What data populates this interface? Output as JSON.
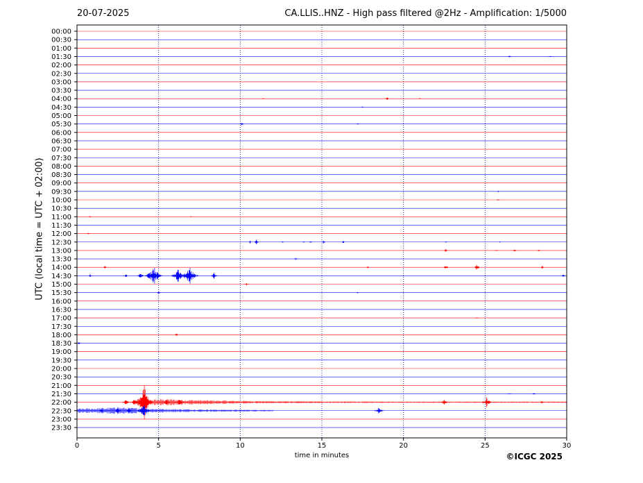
{
  "header": {
    "date": "20-07-2025",
    "title": "CA.LLIS..HNZ - High pass filtered @2Hz - Amplification: 1/5000"
  },
  "axes": {
    "xlabel": "time in minutes",
    "ylabel": "UTC (local time = UTC + 02:00)"
  },
  "credit": "©ICGC 2025",
  "colors": {
    "trace_red": "#ff0000",
    "trace_blue": "#0000ff",
    "grid": "#000080"
  },
  "chart_data": {
    "type": "line",
    "title": "CA.LLIS..HNZ - High pass filtered @2Hz - Amplification: 1/5000",
    "xlabel": "time in minutes",
    "ylabel": "UTC (local time = UTC + 02:00)",
    "xlim": [
      0,
      30
    ],
    "x_ticks": [
      0,
      5,
      10,
      15,
      20,
      25,
      30
    ],
    "grid": "vertical dotted at 5-minute ticks",
    "rows": [
      "00:00",
      "00:30",
      "01:00",
      "01:30",
      "02:00",
      "02:30",
      "03:00",
      "03:30",
      "04:00",
      "04:30",
      "05:00",
      "05:30",
      "06:00",
      "06:30",
      "07:00",
      "07:30",
      "08:00",
      "08:30",
      "09:00",
      "09:30",
      "10:00",
      "10:30",
      "11:00",
      "11:30",
      "12:00",
      "12:30",
      "13:00",
      "13:30",
      "14:00",
      "14:30",
      "15:00",
      "15:30",
      "16:00",
      "16:30",
      "17:00",
      "17:30",
      "18:00",
      "18:30",
      "19:00",
      "19:30",
      "20:00",
      "20:30",
      "21:00",
      "21:30",
      "22:00",
      "22:30",
      "23:00",
      "23:30"
    ],
    "row_colors": "alternating red (even rows) / blue (odd rows)",
    "events": [
      {
        "row": "01:30",
        "t": 26.5,
        "amp": 1
      },
      {
        "row": "01:30",
        "t": 29.0,
        "amp": 1
      },
      {
        "row": "04:00",
        "t": 19.0,
        "amp": 2
      },
      {
        "row": "04:00",
        "t": 11.4,
        "amp": 0.7
      },
      {
        "row": "04:00",
        "t": 21.0,
        "amp": 0.7
      },
      {
        "row": "04:30",
        "t": 17.5,
        "amp": 1
      },
      {
        "row": "05:30",
        "t": 10.1,
        "amp": 2
      },
      {
        "row": "05:30",
        "t": 17.2,
        "amp": 1
      },
      {
        "row": "09:30",
        "t": 25.8,
        "amp": 1
      },
      {
        "row": "10:00",
        "t": 25.8,
        "amp": 1
      },
      {
        "row": "11:00",
        "t": 0.8,
        "amp": 1
      },
      {
        "row": "11:00",
        "t": 7.0,
        "amp": 1
      },
      {
        "row": "12:00",
        "t": 0.7,
        "amp": 1
      },
      {
        "row": "12:30",
        "t": 10.6,
        "amp": 2
      },
      {
        "row": "12:30",
        "t": 11.0,
        "amp": 3
      },
      {
        "row": "12:30",
        "t": 12.6,
        "amp": 1
      },
      {
        "row": "12:30",
        "t": 13.9,
        "amp": 1
      },
      {
        "row": "12:30",
        "t": 14.3,
        "amp": 2
      },
      {
        "row": "12:30",
        "t": 15.1,
        "amp": 2
      },
      {
        "row": "12:30",
        "t": 16.3,
        "amp": 2
      },
      {
        "row": "12:30",
        "t": 22.6,
        "amp": 1
      },
      {
        "row": "12:30",
        "t": 25.9,
        "amp": 1
      },
      {
        "row": "13:00",
        "t": 22.6,
        "amp": 2
      },
      {
        "row": "13:00",
        "t": 25.7,
        "amp": 1
      },
      {
        "row": "13:00",
        "t": 26.8,
        "amp": 2
      },
      {
        "row": "13:00",
        "t": 28.3,
        "amp": 1
      },
      {
        "row": "13:30",
        "t": 13.4,
        "amp": 2
      },
      {
        "row": "14:00",
        "t": 1.7,
        "amp": 2
      },
      {
        "row": "14:00",
        "t": 17.8,
        "amp": 2
      },
      {
        "row": "14:00",
        "t": 22.6,
        "amp": 3
      },
      {
        "row": "14:00",
        "t": 24.5,
        "amp": 4
      },
      {
        "row": "14:00",
        "t": 28.5,
        "amp": 2
      },
      {
        "row": "14:30",
        "t": 0.8,
        "amp": 2
      },
      {
        "row": "14:30",
        "t": 3.0,
        "amp": 2
      },
      {
        "row": "14:30",
        "t": 3.9,
        "amp": 4
      },
      {
        "row": "14:30",
        "t": 4.4,
        "amp": 4
      },
      {
        "row": "14:30",
        "t": 4.7,
        "amp": 12
      },
      {
        "row": "14:30",
        "t": 5.0,
        "amp": 2
      },
      {
        "row": "14:30",
        "t": 6.2,
        "amp": 8
      },
      {
        "row": "14:30",
        "t": 6.6,
        "amp": 4
      },
      {
        "row": "14:30",
        "t": 6.9,
        "amp": 10
      },
      {
        "row": "14:30",
        "t": 8.4,
        "amp": 4
      },
      {
        "row": "14:30",
        "t": 29.8,
        "amp": 2
      },
      {
        "row": "15:00",
        "t": 10.4,
        "amp": 2
      },
      {
        "row": "15:30",
        "t": 5.0,
        "amp": 2
      },
      {
        "row": "15:30",
        "t": 17.2,
        "amp": 1
      },
      {
        "row": "17:00",
        "t": 24.5,
        "amp": 1
      },
      {
        "row": "18:00",
        "t": 6.1,
        "amp": 2
      },
      {
        "row": "18:30",
        "t": 0.1,
        "amp": 2
      },
      {
        "row": "21:30",
        "t": 26.5,
        "amp": 1
      },
      {
        "row": "21:30",
        "t": 28.0,
        "amp": 1
      },
      {
        "row": "22:00",
        "t": 3.0,
        "amp": 4
      },
      {
        "row": "22:00",
        "t": 3.5,
        "amp": 5
      },
      {
        "row": "22:00",
        "t": 4.1,
        "amp": 22
      },
      {
        "row": "22:00",
        "t": 5.5,
        "amp": 4
      },
      {
        "row": "22:00",
        "t": 6.3,
        "amp": 5
      },
      {
        "row": "22:00",
        "t": 22.5,
        "amp": 4
      },
      {
        "row": "22:00",
        "t": 25.1,
        "amp": 6
      },
      {
        "row": "22:00",
        "t": 28.5,
        "amp": 2
      },
      {
        "row": "22:30",
        "t": 1.5,
        "amp": 3
      },
      {
        "row": "22:30",
        "t": 2.5,
        "amp": 4
      },
      {
        "row": "22:30",
        "t": 3.2,
        "amp": 4
      },
      {
        "row": "22:30",
        "t": 4.1,
        "amp": 8
      },
      {
        "row": "22:30",
        "t": 18.5,
        "amp": 5
      }
    ],
    "sustained_activity": [
      {
        "row": "22:00",
        "from": 4.0,
        "to": 30,
        "peak_at": 5.5,
        "level": 3
      },
      {
        "row": "22:30",
        "from": 0,
        "to": 12,
        "peak_at": 2.5,
        "level": 3
      }
    ]
  }
}
